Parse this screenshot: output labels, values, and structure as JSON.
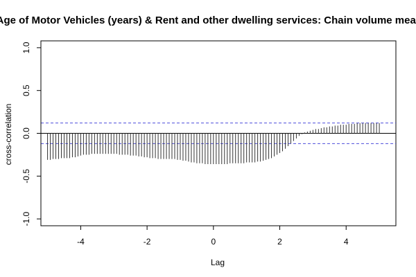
{
  "chart_data": {
    "type": "bar",
    "title": "Age of Motor Vehicles (years) & Rent and other dwelling services: Chain volume measu",
    "xlabel": "Lag",
    "ylabel": "cross-correlation",
    "xlim": [
      -5.2,
      5.5
    ],
    "ylim": [
      -1.08,
      1.08
    ],
    "xticks": [
      -4,
      -2,
      0,
      2,
      4
    ],
    "xtick_labels": [
      "-4",
      "-2",
      "0",
      "2",
      "4"
    ],
    "yticks": [
      -1.0,
      -0.5,
      0.0,
      0.5,
      1.0
    ],
    "ytick_labels": [
      "-1.0",
      "-0.5",
      "0.0",
      "0.5",
      "1.0"
    ],
    "confidence_bounds": [
      0.12,
      -0.12
    ],
    "lag_step": 0.0833,
    "lags": [
      -5.0,
      5.0
    ],
    "values": [
      -0.31,
      -0.31,
      -0.3,
      -0.3,
      -0.3,
      -0.29,
      -0.29,
      -0.29,
      -0.29,
      -0.28,
      -0.28,
      -0.27,
      -0.26,
      -0.25,
      -0.25,
      -0.25,
      -0.24,
      -0.24,
      -0.24,
      -0.24,
      -0.24,
      -0.24,
      -0.24,
      -0.24,
      -0.24,
      -0.24,
      -0.25,
      -0.25,
      -0.25,
      -0.25,
      -0.26,
      -0.26,
      -0.26,
      -0.27,
      -0.27,
      -0.28,
      -0.28,
      -0.29,
      -0.29,
      -0.29,
      -0.3,
      -0.3,
      -0.3,
      -0.3,
      -0.3,
      -0.3,
      -0.3,
      -0.31,
      -0.31,
      -0.32,
      -0.32,
      -0.33,
      -0.34,
      -0.34,
      -0.35,
      -0.35,
      -0.35,
      -0.36,
      -0.36,
      -0.36,
      -0.36,
      -0.36,
      -0.36,
      -0.36,
      -0.36,
      -0.36,
      -0.35,
      -0.35,
      -0.35,
      -0.35,
      -0.35,
      -0.35,
      -0.34,
      -0.34,
      -0.34,
      -0.34,
      -0.33,
      -0.33,
      -0.32,
      -0.31,
      -0.3,
      -0.29,
      -0.27,
      -0.25,
      -0.23,
      -0.21,
      -0.18,
      -0.15,
      -0.12,
      -0.09,
      -0.06,
      -0.03,
      -0.01,
      0.01,
      0.02,
      0.03,
      0.04,
      0.05,
      0.05,
      0.06,
      0.07,
      0.07,
      0.08,
      0.08,
      0.09,
      0.09,
      0.1,
      0.1,
      0.1,
      0.11,
      0.11,
      0.11,
      0.12,
      0.12,
      0.12,
      0.12,
      0.12,
      0.12,
      0.12,
      0.12,
      0.12
    ]
  },
  "colors": {
    "bars": "#333333",
    "axes": "#000000",
    "confidence": "#4b4bdc",
    "background": "#ffffff"
  }
}
